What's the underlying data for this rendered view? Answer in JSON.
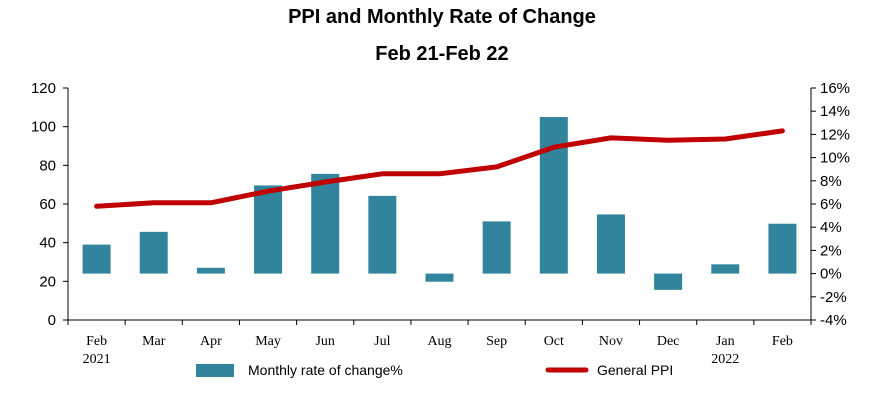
{
  "chart_data": {
    "type": "bar+line",
    "title": "PPI and Monthly Rate of Change",
    "subtitle": "Feb 21-Feb 22",
    "categories": [
      "Feb",
      "Mar",
      "Apr",
      "May",
      "Jun",
      "Jul",
      "Aug",
      "Sep",
      "Oct",
      "Nov",
      "Dec",
      "Jan",
      "Feb"
    ],
    "category_sublabels": [
      "2021",
      "",
      "",
      "",
      "",
      "",
      "",
      "",
      "",
      "",
      "",
      "2022",
      ""
    ],
    "left_axis": {
      "min": 0,
      "max": 120,
      "ticks": [
        0,
        20,
        40,
        60,
        80,
        100,
        120
      ]
    },
    "right_axis": {
      "min": -4,
      "max": 16,
      "ticks": [
        "-4%",
        "-2%",
        "0%",
        "2%",
        "4%",
        "6%",
        "8%",
        "10%",
        "12%",
        "14%",
        "16%"
      ]
    },
    "series": [
      {
        "name": "Monthly rate of change%",
        "type": "bar",
        "axis": "right",
        "color": "#31849B",
        "values": [
          2.5,
          3.6,
          0.5,
          7.6,
          8.6,
          6.7,
          -0.7,
          4.5,
          13.5,
          5.1,
          -1.4,
          0.8,
          4.3
        ]
      },
      {
        "name": "General PPI",
        "type": "line",
        "axis": "right",
        "color": "#C00000",
        "values": [
          5.8,
          6.1,
          6.1,
          7.1,
          7.9,
          8.6,
          8.6,
          9.2,
          10.9,
          11.7,
          11.5,
          11.6,
          12.3
        ]
      }
    ],
    "legend": {
      "placement": "bottom"
    },
    "grid": false
  }
}
